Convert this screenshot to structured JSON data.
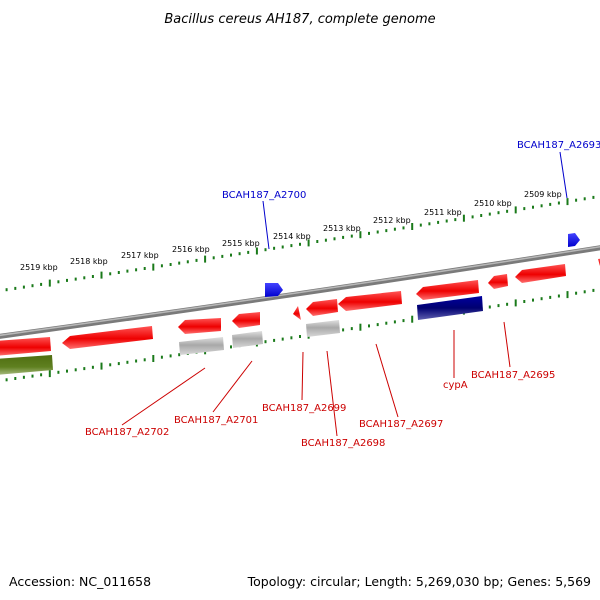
{
  "title": "Bacillus cereus AH187, complete genome",
  "footer": {
    "accession": "Accession: NC_011658",
    "summary": "Topology: circular; Length: 5,269,030 bp; Genes: 5,569"
  },
  "scale_labels": [
    "2519 kbp",
    "2518 kbp",
    "2517 kbp",
    "2516 kbp",
    "2515 kbp",
    "2514 kbp",
    "2513 kbp",
    "2512 kbp",
    "2511 kbp",
    "2510 kbp",
    "2509 kbp"
  ],
  "gene_labels": {
    "a2700": "BCAH187_A2700",
    "a2693": "BCAH187_A2693",
    "a2702": "BCAH187_A2702",
    "a2701": "BCAH187_A2701",
    "a2699": "BCAH187_A2699",
    "a2698": "BCAH187_A2698",
    "a2697": "BCAH187_A2697",
    "cypA": "cypA",
    "a2695": "BCAH187_A2695"
  },
  "colors": {
    "forward_label": "#0000cc",
    "reverse_label": "#cc0000",
    "cds_red": "#ee0000",
    "cds_blue": "#0000ee",
    "cds_navy": "#000080",
    "cds_grey": "#a0a0a0",
    "cds_green": "#5a7a1a",
    "backbone": "#808080",
    "ticks": "#1a7a1a"
  }
}
